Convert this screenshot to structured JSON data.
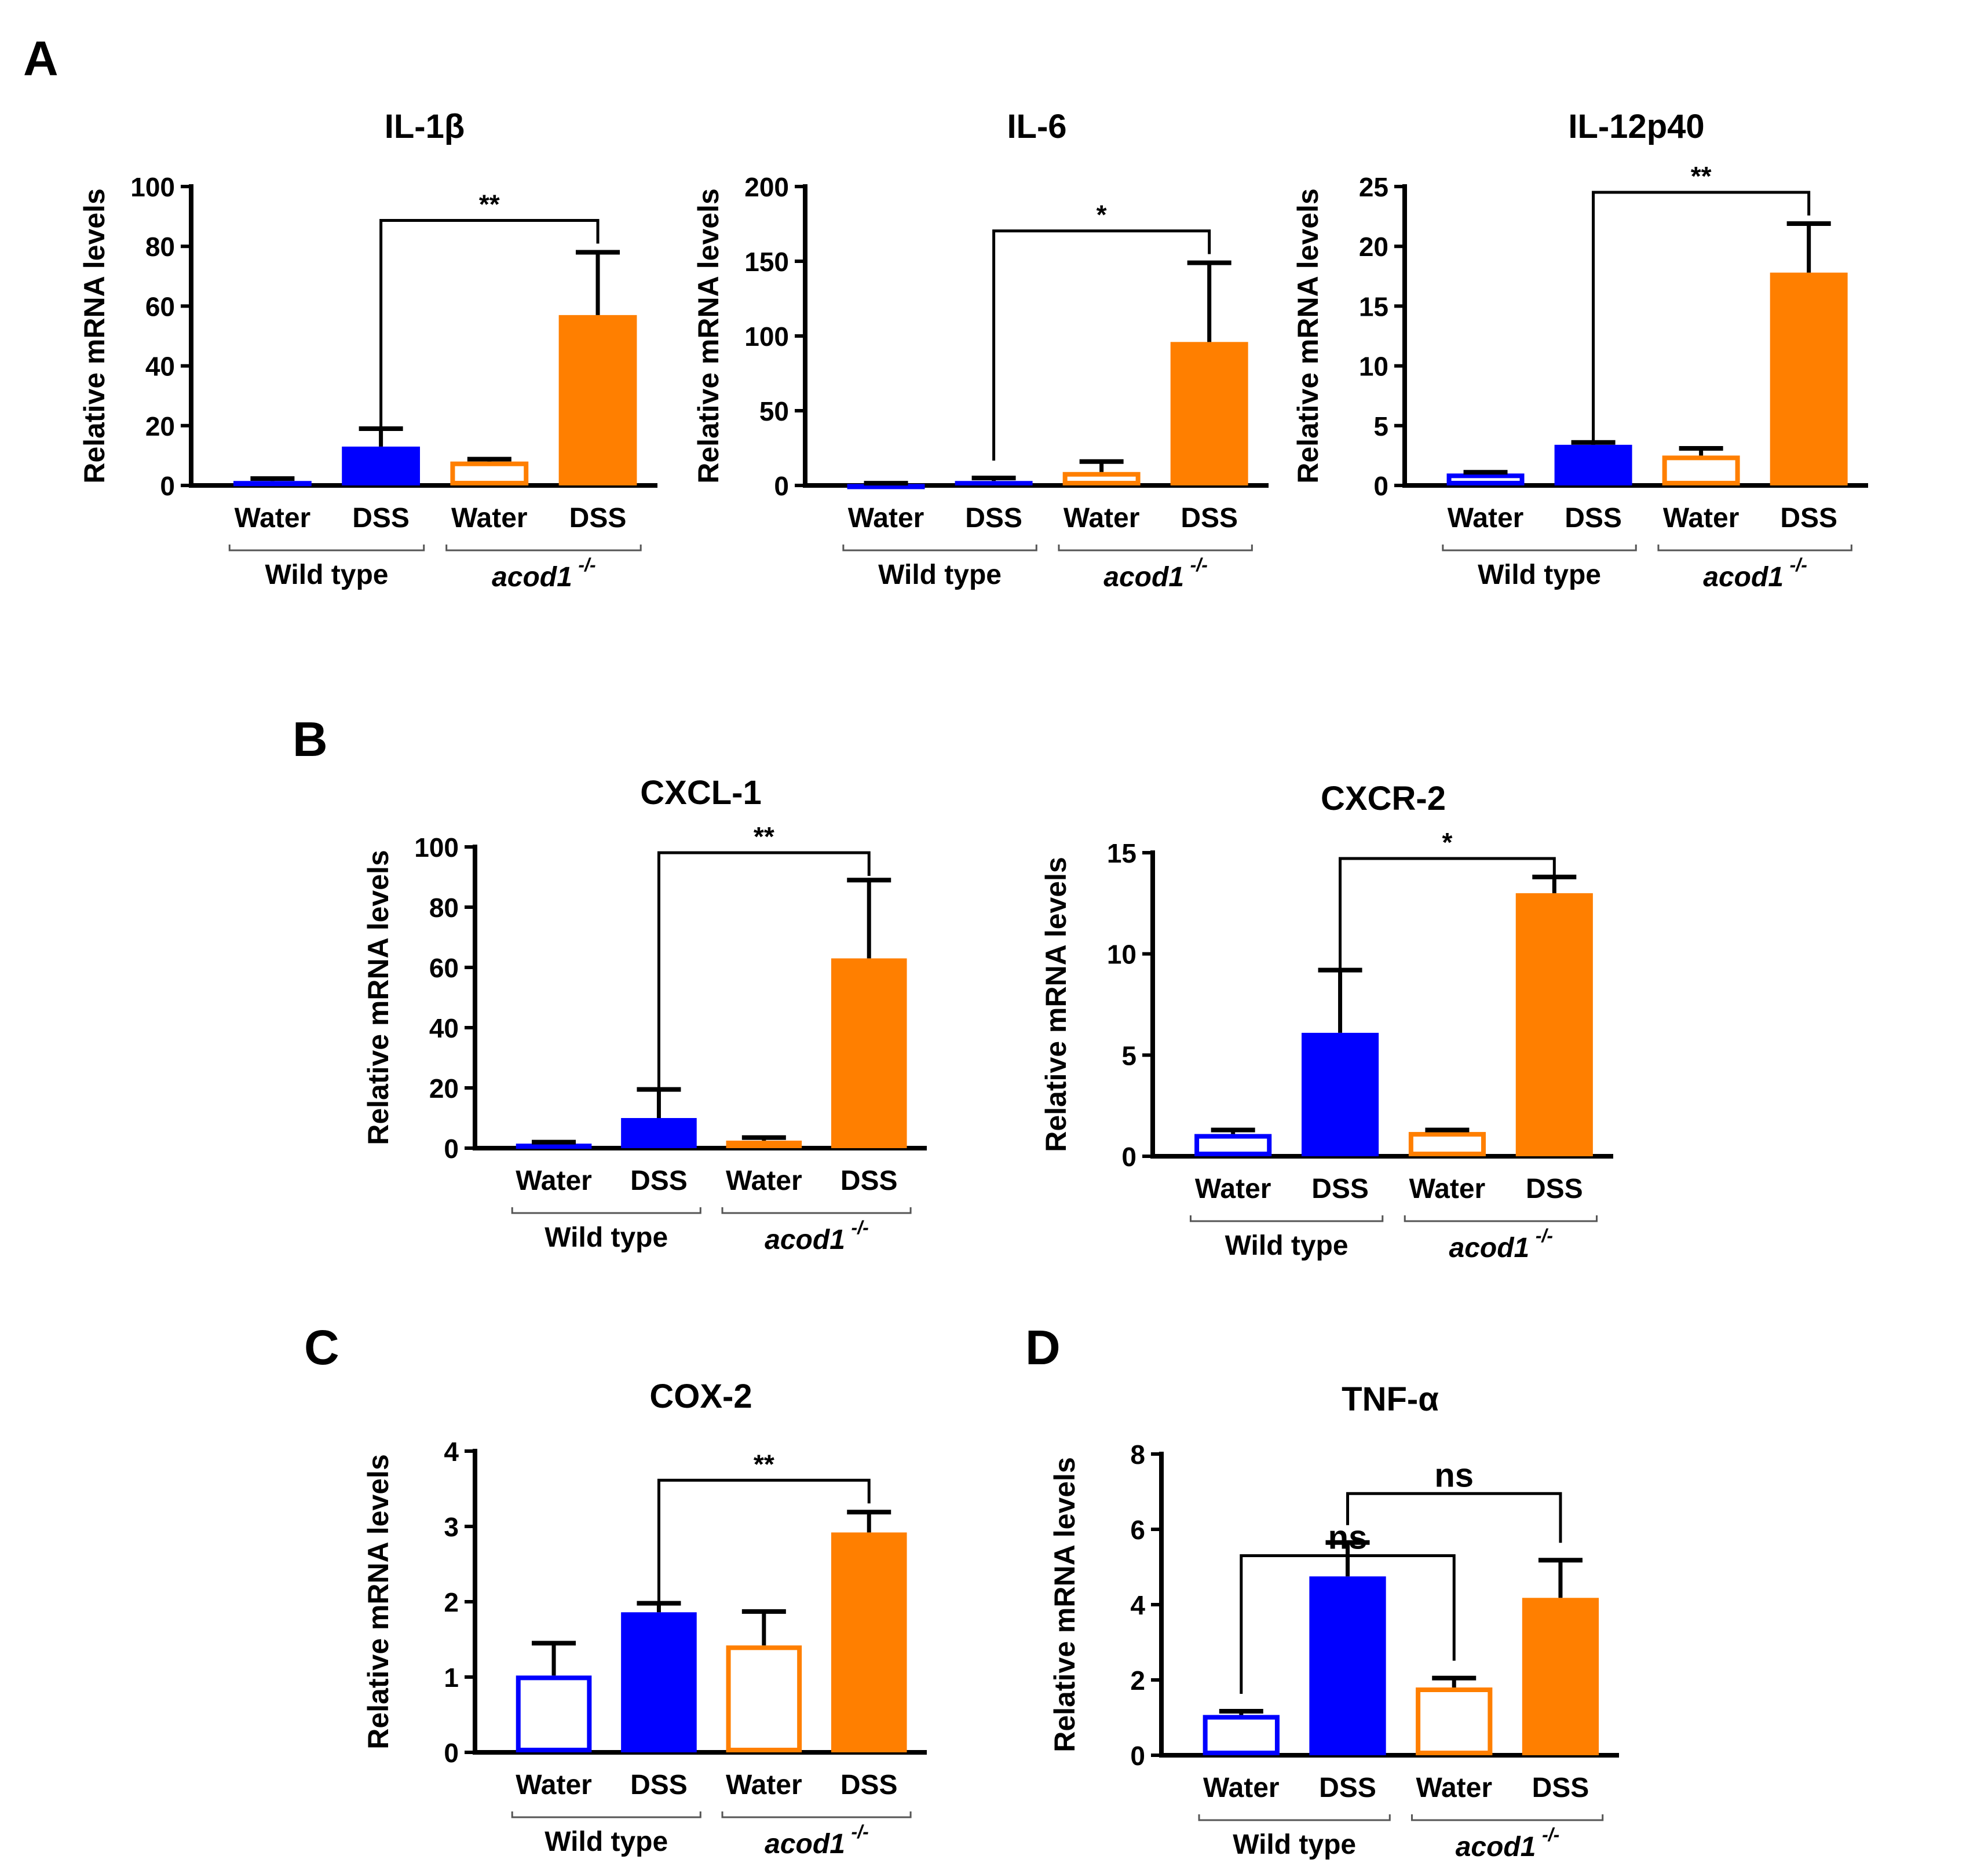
{
  "figure": {
    "panels": [
      {
        "letter": "A"
      },
      {
        "letter": "B"
      },
      {
        "letter": "C"
      },
      {
        "letter": "D"
      }
    ],
    "colors": {
      "wild_type": "#0000ff",
      "acod1": "#ff7f00",
      "axis": "#000000",
      "background": "#ffffff"
    },
    "group_labels": {
      "wild_type": "Wild type",
      "acod1": "acod1",
      "acod1_superscript": "-/-"
    }
  },
  "chart_data": [
    {
      "type": "bar",
      "panel": "A",
      "title": "IL-1β",
      "ylabel": "Relative mRNA levels",
      "categories": [
        "Water",
        "DSS",
        "Water",
        "DSS"
      ],
      "groups": [
        "Wild type",
        "acod1 -/-"
      ],
      "values": [
        1.5,
        13,
        8,
        57
      ],
      "errors": [
        0.8,
        6,
        0.8,
        21
      ],
      "fill": [
        "open",
        "filled",
        "open",
        "filled"
      ],
      "ylim": [
        0,
        100
      ],
      "yticks": [
        0,
        20,
        40,
        60,
        80,
        100
      ],
      "significance": [
        {
          "from": 1,
          "to": 3,
          "label": "**"
        }
      ]
    },
    {
      "type": "bar",
      "panel": "A",
      "title": "IL-6",
      "ylabel": "Relative mRNA levels",
      "categories": [
        "Water",
        "DSS",
        "Water",
        "DSS"
      ],
      "groups": [
        "Wild type",
        "acod1 -/-"
      ],
      "values": [
        1,
        3,
        9,
        96
      ],
      "errors": [
        0.5,
        2,
        7,
        53
      ],
      "fill": [
        "open",
        "filled",
        "open",
        "filled"
      ],
      "ylim": [
        0,
        200
      ],
      "yticks": [
        0,
        50,
        100,
        150,
        200
      ],
      "significance": [
        {
          "from": 1,
          "to": 3,
          "label": "*"
        }
      ]
    },
    {
      "type": "bar",
      "panel": "A",
      "title": "IL-12p40",
      "ylabel": "Relative mRNA levels",
      "categories": [
        "Water",
        "DSS",
        "Water",
        "DSS"
      ],
      "groups": [
        "Wild type",
        "acod1 -/-"
      ],
      "values": [
        1,
        3.4,
        2.5,
        17.8
      ],
      "errors": [
        0.1,
        0.2,
        0.6,
        4.1
      ],
      "fill": [
        "open",
        "filled",
        "open",
        "filled"
      ],
      "ylim": [
        0,
        25
      ],
      "yticks": [
        0,
        5,
        10,
        15,
        20,
        25
      ],
      "significance": [
        {
          "from": 1,
          "to": 3,
          "label": "**"
        }
      ]
    },
    {
      "type": "bar",
      "panel": "B",
      "title": "CXCL-1",
      "ylabel": "Relative mRNA levels",
      "categories": [
        "Water",
        "DSS",
        "Water",
        "DSS"
      ],
      "groups": [
        "Wild type",
        "acod1 -/-"
      ],
      "values": [
        1.5,
        10,
        2.5,
        63
      ],
      "errors": [
        0.5,
        9.5,
        1,
        26
      ],
      "fill": [
        "open",
        "filled",
        "open",
        "filled"
      ],
      "ylim": [
        0,
        100
      ],
      "yticks": [
        0,
        20,
        40,
        60,
        80,
        100
      ],
      "significance": [
        {
          "from": 1,
          "to": 3,
          "label": "**"
        }
      ]
    },
    {
      "type": "bar",
      "panel": "B",
      "title": "CXCR-2",
      "ylabel": "Relative mRNA levels",
      "categories": [
        "Water",
        "DSS",
        "Water",
        "DSS"
      ],
      "groups": [
        "Wild type",
        "acod1 -/-"
      ],
      "values": [
        1.1,
        6.1,
        1.2,
        13
      ],
      "errors": [
        0.2,
        3.1,
        0.1,
        0.8
      ],
      "fill": [
        "open",
        "filled",
        "open",
        "filled"
      ],
      "ylim": [
        0,
        15
      ],
      "yticks": [
        0,
        5,
        10,
        15
      ],
      "significance": [
        {
          "from": 1,
          "to": 3,
          "label": "*"
        }
      ]
    },
    {
      "type": "bar",
      "panel": "C",
      "title": "COX-2",
      "ylabel": "Relative mRNA levels",
      "categories": [
        "Water",
        "DSS",
        "Water",
        "DSS"
      ],
      "groups": [
        "Wild type",
        "acod1 -/-"
      ],
      "values": [
        1.02,
        1.86,
        1.42,
        2.92
      ],
      "errors": [
        0.43,
        0.12,
        0.45,
        0.27
      ],
      "fill": [
        "open",
        "filled",
        "open",
        "filled"
      ],
      "ylim": [
        0,
        4
      ],
      "yticks": [
        0,
        1,
        2,
        3,
        4
      ],
      "significance": [
        {
          "from": 1,
          "to": 3,
          "label": "**"
        }
      ]
    },
    {
      "type": "bar",
      "panel": "D",
      "title": "TNF-α",
      "ylabel": "Relative mRNA levels",
      "categories": [
        "Water",
        "DSS",
        "Water",
        "DSS"
      ],
      "groups": [
        "Wild type",
        "acod1 -/-"
      ],
      "values": [
        1.07,
        4.75,
        1.8,
        4.18
      ],
      "errors": [
        0.1,
        0.9,
        0.25,
        1.0
      ],
      "fill": [
        "open",
        "filled",
        "open",
        "filled"
      ],
      "ylim": [
        0,
        8
      ],
      "yticks": [
        0,
        2,
        4,
        6,
        8
      ],
      "significance": [
        {
          "from": 0,
          "to": 2,
          "label": "ns"
        },
        {
          "from": 1,
          "to": 3,
          "label": "ns"
        }
      ]
    }
  ]
}
